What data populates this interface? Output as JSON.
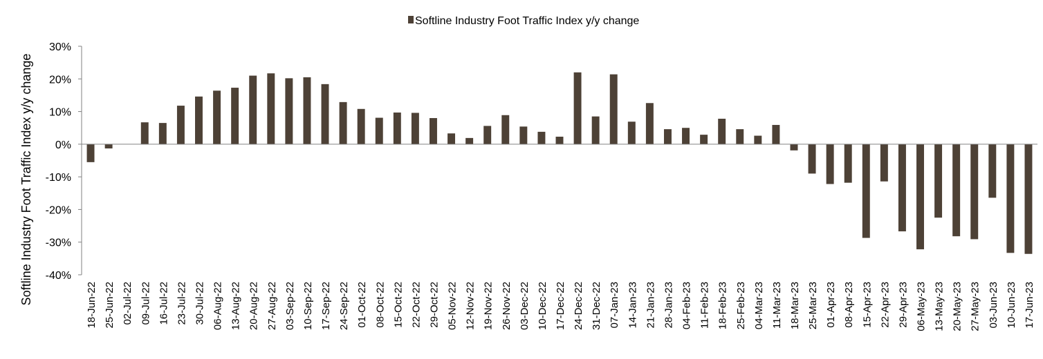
{
  "chart_data": {
    "type": "bar",
    "title": "",
    "xlabel": "",
    "ylabel": "Softline Industry Foot Traffic Index y/y change",
    "legend": {
      "position": "top-center",
      "entries": [
        "Softline Industry Foot Traffic Index y/y change"
      ]
    },
    "ylim": [
      -40,
      30
    ],
    "y_ticks": [
      "30%",
      "20%",
      "10%",
      "0%",
      "-10%",
      "-20%",
      "-30%",
      "-40%"
    ],
    "y_tick_values": [
      30,
      20,
      10,
      0,
      -10,
      -20,
      -30,
      -40
    ],
    "grid": false,
    "bar_color": "#4d4136",
    "categories": [
      "18-Jun-22",
      "25-Jun-22",
      "02-Jul-22",
      "09-Jul-22",
      "16-Jul-22",
      "23-Jul-22",
      "30-Jul-22",
      "06-Aug-22",
      "13-Aug-22",
      "20-Aug-22",
      "27-Aug-22",
      "03-Sep-22",
      "10-Sep-22",
      "17-Sep-22",
      "24-Sep-22",
      "01-Oct-22",
      "08-Oct-22",
      "15-Oct-22",
      "22-Oct-22",
      "29-Oct-22",
      "05-Nov-22",
      "12-Nov-22",
      "19-Nov-22",
      "26-Nov-22",
      "03-Dec-22",
      "10-Dec-22",
      "17-Dec-22",
      "24-Dec-22",
      "31-Dec-22",
      "07-Jan-23",
      "14-Jan-23",
      "21-Jan-23",
      "28-Jan-23",
      "04-Feb-23",
      "11-Feb-23",
      "18-Feb-23",
      "25-Feb-23",
      "04-Mar-23",
      "11-Mar-23",
      "18-Mar-23",
      "25-Mar-23",
      "01-Apr-23",
      "08-Apr-23",
      "15-Apr-23",
      "22-Apr-23",
      "29-Apr-23",
      "06-May-23",
      "13-May-23",
      "20-May-23",
      "27-May-23",
      "03-Jun-23",
      "10-Jun-23",
      "17-Jun-23"
    ],
    "series": [
      {
        "name": "Softline Industry Foot Traffic Index y/y change",
        "values": [
          -5.5,
          -1.3,
          0,
          6.7,
          6.5,
          11.8,
          14.6,
          16.4,
          17.3,
          21.0,
          21.7,
          20.2,
          20.5,
          18.4,
          12.9,
          10.8,
          8.1,
          9.7,
          9.6,
          8.0,
          3.3,
          1.9,
          5.6,
          8.9,
          5.4,
          3.8,
          2.3,
          22.0,
          8.5,
          21.4,
          6.9,
          12.6,
          4.6,
          5.0,
          2.9,
          7.8,
          4.6,
          2.6,
          5.9,
          -1.9,
          -9.0,
          -12.2,
          -11.8,
          -28.7,
          -11.4,
          -26.7,
          -32.2,
          -22.5,
          -28.2,
          -29.1,
          -16.4,
          -33.3,
          -33.6
        ]
      }
    ]
  }
}
